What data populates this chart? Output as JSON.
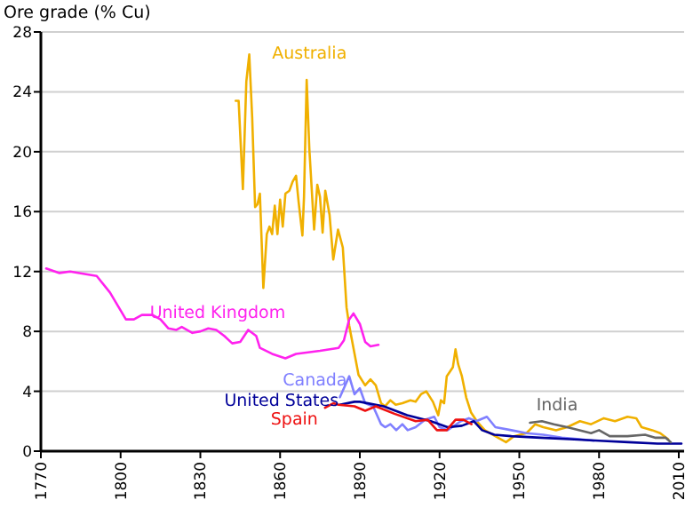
{
  "chart_data": {
    "type": "line",
    "ylabel": "Ore grade (% Cu)",
    "xlim": [
      1770,
      2012
    ],
    "xticks": [
      1770,
      1800,
      1830,
      1860,
      1890,
      1920,
      1950,
      1980,
      2010
    ],
    "ylim": [
      0,
      28
    ],
    "yticks": [
      0,
      4,
      8,
      12,
      16,
      20,
      24,
      28
    ],
    "grid": "y",
    "marker": "none",
    "line_style": "solid",
    "series": [
      {
        "name": "Australia",
        "color": "#f0b000",
        "x": [
          1843.3,
          1844.4,
          1846,
          1847.3,
          1848.4,
          1849.5,
          1850.6,
          1851.5,
          1852.4,
          1853.7,
          1855,
          1856,
          1857,
          1858,
          1859,
          1860,
          1861,
          1862,
          1863.5,
          1864.7,
          1866,
          1867,
          1868.4,
          1869,
          1870,
          1871,
          1872.8,
          1874,
          1875,
          1876,
          1877,
          1878.6,
          1880,
          1881.8,
          1883.6,
          1885,
          1886,
          1889.5,
          1892,
          1894,
          1896,
          1898,
          1899.5,
          1901.5,
          1903.5,
          1906,
          1909,
          1911,
          1913,
          1915,
          1917.5,
          1919.5,
          1920.5,
          1921.7,
          1922.7,
          1925,
          1926,
          1927,
          1928.4,
          1930,
          1931.8,
          1934,
          1937,
          1942,
          1945,
          1948,
          1952.7,
          1956,
          1959,
          1963.8,
          1968,
          1972.8,
          1977,
          1981.8,
          1986,
          1990.7,
          1994,
          1996,
          2000,
          2003,
          2006
        ],
        "values": [
          23.4,
          23.4,
          17.5,
          24.7,
          26.5,
          22.3,
          16.3,
          16.5,
          17.2,
          10.9,
          14.5,
          15,
          14.5,
          16.4,
          14.5,
          16.8,
          15,
          17.2,
          17.4,
          18,
          18.4,
          16.6,
          14.4,
          17,
          24.8,
          20.2,
          14.8,
          17.8,
          17,
          14.6,
          17.4,
          15.8,
          12.8,
          14.8,
          13.6,
          9.6,
          8.4,
          5.1,
          4.4,
          4.8,
          4.4,
          3.2,
          3,
          3.4,
          3.1,
          3.2,
          3.4,
          3.3,
          3.8,
          4,
          3.3,
          2.4,
          3.4,
          3.2,
          5,
          5.6,
          6.8,
          5.8,
          5,
          3.6,
          2.6,
          2,
          1.4,
          0.9,
          0.6,
          1,
          1.2,
          1.8,
          1.6,
          1.4,
          1.6,
          2,
          1.8,
          2.2,
          2,
          2.3,
          2.2,
          1.6,
          1.4,
          1.2,
          0.8
        ]
      },
      {
        "name": "United Kingdom",
        "color": "#ff22ee",
        "x": [
          1772,
          1777,
          1781,
          1791,
          1796,
          1802,
          1805,
          1808,
          1812,
          1815,
          1818,
          1821,
          1823,
          1827,
          1830,
          1833,
          1836,
          1839,
          1842,
          1845,
          1848,
          1851,
          1852.4,
          1857,
          1862,
          1866,
          1875,
          1882,
          1884,
          1886,
          1887.6,
          1890,
          1892,
          1894,
          1897
        ],
        "values": [
          12.2,
          11.9,
          12,
          11.7,
          10.6,
          8.8,
          8.8,
          9.1,
          9.1,
          8.8,
          8.2,
          8.1,
          8.3,
          7.9,
          8,
          8.2,
          8.1,
          7.7,
          7.2,
          7.3,
          8.1,
          7.7,
          6.9,
          6.5,
          6.2,
          6.5,
          6.7,
          6.9,
          7.4,
          8.8,
          9.2,
          8.5,
          7.3,
          7,
          7.1
        ]
      },
      {
        "name": "Canada",
        "color": "#8080ff",
        "x": [
          1882.5,
          1886,
          1888,
          1890,
          1892,
          1895,
          1898,
          1899.5,
          1901.5,
          1903.7,
          1906,
          1908,
          1911,
          1914.6,
          1918,
          1920,
          1923,
          1928,
          1931,
          1933.8,
          1937.8,
          1941,
          1947,
          1952.7,
          1959,
          1966,
          1972.7,
          1978
        ],
        "values": [
          3.6,
          5,
          3.8,
          4.2,
          3.2,
          3,
          1.8,
          1.6,
          1.8,
          1.4,
          1.8,
          1.4,
          1.6,
          2.1,
          2.3,
          1.6,
          1.4,
          2,
          2.2,
          2,
          2.3,
          1.6,
          1.4,
          1.2,
          1.1,
          0.9,
          0.8,
          0.7
        ]
      },
      {
        "name": "United States",
        "color": "#000099",
        "x": [
          1882.4,
          1888,
          1890,
          1899,
          1907.8,
          1916.7,
          1923,
          1928.4,
          1932.9,
          1936,
          1940.6,
          1947,
          1958,
          1969,
          1980,
          1991,
          2002,
          2011
        ],
        "values": [
          3.1,
          3.3,
          3.3,
          3,
          2.4,
          2,
          1.6,
          1.7,
          2,
          1.4,
          1.1,
          1,
          0.9,
          0.8,
          0.7,
          0.6,
          0.5,
          0.5
        ]
      },
      {
        "name": "Spain",
        "color": "#ee1111",
        "x": [
          1876.9,
          1880,
          1882,
          1888,
          1892,
          1896,
          1903,
          1911,
          1915.5,
          1919,
          1922.7,
          1926,
          1929,
          1932
        ],
        "values": [
          2.9,
          3.2,
          3.1,
          3,
          2.7,
          3,
          2.5,
          2,
          2.1,
          1.4,
          1.4,
          2.1,
          2.1,
          1.8
        ]
      },
      {
        "name": "India",
        "color": "#666666",
        "x": [
          1954,
          1958.5,
          1963,
          1968,
          1977,
          1980,
          1984,
          1990.7,
          1997.3,
          2001,
          2005,
          2007
        ],
        "values": [
          1.9,
          2,
          1.8,
          1.6,
          1.2,
          1.4,
          1,
          1,
          1.1,
          0.9,
          0.9,
          0.6
        ]
      }
    ]
  }
}
